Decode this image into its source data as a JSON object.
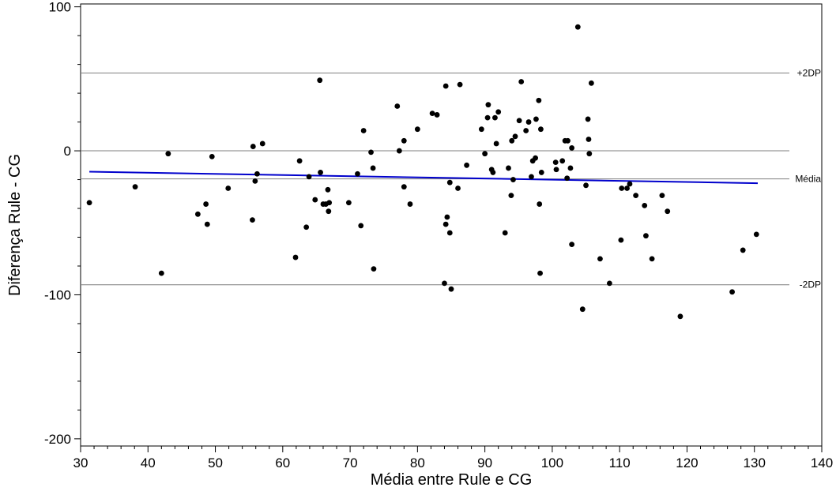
{
  "chart_data": {
    "type": "scatter",
    "xlabel": "Média entre Rule e CG",
    "ylabel": "Diferença Rule - CG",
    "xlim": [
      30,
      140
    ],
    "ylim": [
      -205,
      102
    ],
    "x_ticks": [
      30,
      40,
      50,
      60,
      70,
      80,
      90,
      100,
      110,
      120,
      130,
      140
    ],
    "y_ticks": [
      100,
      0,
      -100,
      -200
    ],
    "grid": false,
    "reference_lines": [
      {
        "label": "+2DP",
        "y": 54
      },
      {
        "label": "Média",
        "y": -19.5
      },
      {
        "label": "-2DP",
        "y": -93
      },
      {
        "label": "",
        "y": 0
      }
    ],
    "trend_line": {
      "color": "#0000cc",
      "x": [
        31.3,
        130.5
      ],
      "y": [
        -14.5,
        -22.5
      ]
    },
    "colors": {
      "points": "#000000",
      "trend": "#0000cc",
      "reference": "#7f7f7f"
    },
    "points": [
      {
        "x": 31.3,
        "y": -36
      },
      {
        "x": 38.1,
        "y": -25
      },
      {
        "x": 42.0,
        "y": -85
      },
      {
        "x": 43.0,
        "y": -2
      },
      {
        "x": 47.4,
        "y": -44
      },
      {
        "x": 48.6,
        "y": -37
      },
      {
        "x": 48.8,
        "y": -51
      },
      {
        "x": 49.5,
        "y": -4
      },
      {
        "x": 51.9,
        "y": -26
      },
      {
        "x": 55.6,
        "y": 3
      },
      {
        "x": 55.5,
        "y": -48
      },
      {
        "x": 55.9,
        "y": -21
      },
      {
        "x": 56.2,
        "y": -16
      },
      {
        "x": 57.0,
        "y": 5
      },
      {
        "x": 61.9,
        "y": -74
      },
      {
        "x": 62.5,
        "y": -7
      },
      {
        "x": 63.5,
        "y": -53
      },
      {
        "x": 63.9,
        "y": -18
      },
      {
        "x": 64.8,
        "y": -34
      },
      {
        "x": 65.5,
        "y": 49
      },
      {
        "x": 65.6,
        "y": -15
      },
      {
        "x": 66.0,
        "y": -37
      },
      {
        "x": 66.4,
        "y": -37
      },
      {
        "x": 66.7,
        "y": -27
      },
      {
        "x": 66.8,
        "y": -42
      },
      {
        "x": 66.9,
        "y": -36
      },
      {
        "x": 69.8,
        "y": -36
      },
      {
        "x": 71.1,
        "y": -16
      },
      {
        "x": 71.6,
        "y": -52
      },
      {
        "x": 72.0,
        "y": 14
      },
      {
        "x": 73.1,
        "y": -1
      },
      {
        "x": 73.4,
        "y": -12
      },
      {
        "x": 73.5,
        "y": -82
      },
      {
        "x": 77.0,
        "y": 31
      },
      {
        "x": 77.3,
        "y": 0
      },
      {
        "x": 78.0,
        "y": 7
      },
      {
        "x": 78.0,
        "y": -25
      },
      {
        "x": 78.9,
        "y": -37
      },
      {
        "x": 80.0,
        "y": 15
      },
      {
        "x": 82.2,
        "y": 26
      },
      {
        "x": 82.9,
        "y": 25
      },
      {
        "x": 84.0,
        "y": -92
      },
      {
        "x": 84.2,
        "y": 45
      },
      {
        "x": 84.2,
        "y": -51
      },
      {
        "x": 84.4,
        "y": -46
      },
      {
        "x": 84.8,
        "y": -57
      },
      {
        "x": 84.8,
        "y": -22
      },
      {
        "x": 85.0,
        "y": -96
      },
      {
        "x": 86.0,
        "y": -26
      },
      {
        "x": 86.3,
        "y": 46
      },
      {
        "x": 87.3,
        "y": -10
      },
      {
        "x": 89.5,
        "y": 15
      },
      {
        "x": 90.0,
        "y": -2
      },
      {
        "x": 90.4,
        "y": 23
      },
      {
        "x": 90.5,
        "y": 32
      },
      {
        "x": 91.0,
        "y": -13
      },
      {
        "x": 91.2,
        "y": -15
      },
      {
        "x": 91.5,
        "y": 23
      },
      {
        "x": 91.7,
        "y": 5
      },
      {
        "x": 92.0,
        "y": 27
      },
      {
        "x": 93.0,
        "y": -57
      },
      {
        "x": 93.5,
        "y": -12
      },
      {
        "x": 93.9,
        "y": -31
      },
      {
        "x": 94.0,
        "y": 7
      },
      {
        "x": 94.2,
        "y": -20
      },
      {
        "x": 94.5,
        "y": 10
      },
      {
        "x": 95.1,
        "y": 21
      },
      {
        "x": 95.4,
        "y": 48
      },
      {
        "x": 96.1,
        "y": 14
      },
      {
        "x": 96.5,
        "y": 20
      },
      {
        "x": 96.9,
        "y": -18
      },
      {
        "x": 97.1,
        "y": -7
      },
      {
        "x": 97.5,
        "y": -5
      },
      {
        "x": 97.6,
        "y": 22
      },
      {
        "x": 98.0,
        "y": 35
      },
      {
        "x": 98.1,
        "y": -37
      },
      {
        "x": 98.2,
        "y": -85
      },
      {
        "x": 98.3,
        "y": 15
      },
      {
        "x": 98.4,
        "y": -15
      },
      {
        "x": 100.5,
        "y": -8
      },
      {
        "x": 100.6,
        "y": -13
      },
      {
        "x": 101.5,
        "y": -7
      },
      {
        "x": 101.9,
        "y": 7
      },
      {
        "x": 102.2,
        "y": -19
      },
      {
        "x": 102.3,
        "y": 7
      },
      {
        "x": 102.7,
        "y": -12
      },
      {
        "x": 102.9,
        "y": -65
      },
      {
        "x": 102.9,
        "y": 2
      },
      {
        "x": 104.5,
        "y": -110
      },
      {
        "x": 105.0,
        "y": -24
      },
      {
        "x": 105.3,
        "y": 22
      },
      {
        "x": 105.4,
        "y": 8
      },
      {
        "x": 105.5,
        "y": -2
      },
      {
        "x": 105.8,
        "y": 47
      },
      {
        "x": 103.8,
        "y": 86
      },
      {
        "x": 107.1,
        "y": -75
      },
      {
        "x": 108.5,
        "y": -92
      },
      {
        "x": 110.2,
        "y": -62
      },
      {
        "x": 110.3,
        "y": -26
      },
      {
        "x": 111.1,
        "y": -26
      },
      {
        "x": 111.5,
        "y": -23
      },
      {
        "x": 112.4,
        "y": -31
      },
      {
        "x": 113.7,
        "y": -38
      },
      {
        "x": 113.9,
        "y": -59
      },
      {
        "x": 114.8,
        "y": -75
      },
      {
        "x": 116.3,
        "y": -31
      },
      {
        "x": 117.1,
        "y": -42
      },
      {
        "x": 119.0,
        "y": -115
      },
      {
        "x": 126.7,
        "y": -98
      },
      {
        "x": 128.3,
        "y": -69
      },
      {
        "x": 130.3,
        "y": -58
      }
    ]
  }
}
